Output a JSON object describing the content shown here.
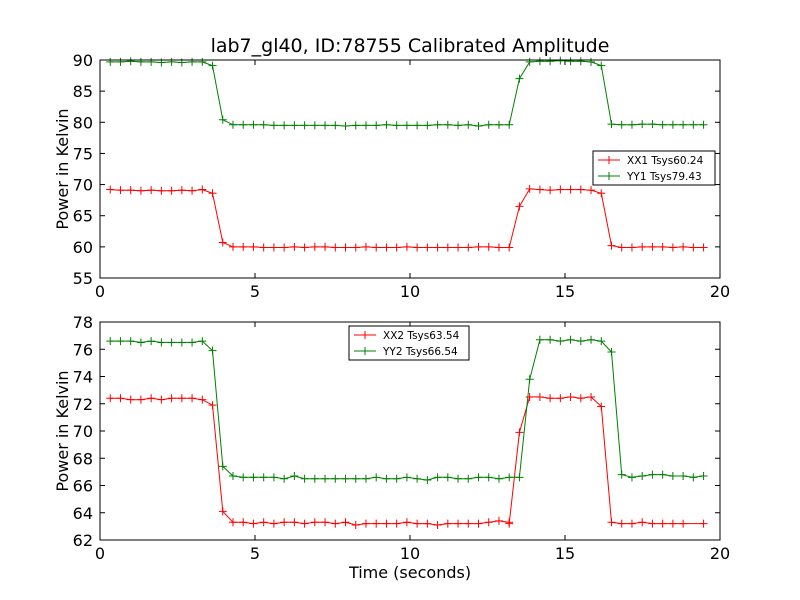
{
  "figure": {
    "title": "lab7_gl40, ID:78755 Calibrated Amplitude",
    "xlabel": "Time (seconds)"
  },
  "chart_data": [
    {
      "type": "line",
      "title": "lab7_gl40, ID:78755 Calibrated Amplitude",
      "xlabel": "",
      "ylabel": "Power in Kelvin",
      "xlim": [
        0,
        20
      ],
      "ylim": [
        55,
        90
      ],
      "xticks": [
        0,
        5,
        10,
        15,
        20
      ],
      "yticks": [
        55,
        60,
        65,
        70,
        75,
        80,
        85,
        90
      ],
      "grid": false,
      "legend_position": "center-right",
      "x": [
        0.33,
        0.66,
        0.99,
        1.32,
        1.65,
        1.98,
        2.31,
        2.64,
        2.97,
        3.3,
        3.63,
        3.96,
        4.29,
        4.62,
        4.95,
        5.28,
        5.61,
        5.94,
        6.27,
        6.6,
        6.93,
        7.26,
        7.59,
        7.92,
        8.25,
        8.58,
        8.91,
        9.24,
        9.57,
        9.9,
        10.23,
        10.56,
        10.89,
        11.22,
        11.55,
        11.88,
        12.21,
        12.54,
        12.87,
        13.2,
        13.53,
        13.86,
        14.19,
        14.52,
        14.85,
        15.18,
        15.51,
        15.84,
        16.17,
        16.5,
        16.83,
        17.16,
        17.49,
        17.82,
        18.15,
        18.48,
        18.81,
        19.14,
        19.47
      ],
      "series": [
        {
          "name": "XX1 Tsys60.24",
          "color": "#ff0000",
          "values": [
            69.2,
            69.1,
            69.1,
            69.0,
            69.1,
            69.0,
            69.0,
            69.1,
            69.0,
            69.2,
            68.6,
            60.7,
            60.0,
            60.0,
            60.0,
            59.9,
            59.9,
            59.9,
            60.0,
            59.9,
            60.0,
            60.0,
            59.9,
            59.9,
            59.9,
            60.0,
            59.9,
            59.9,
            59.9,
            60.0,
            59.9,
            59.9,
            59.9,
            59.9,
            59.9,
            59.9,
            60.0,
            60.0,
            59.9,
            59.9,
            66.5,
            69.3,
            69.2,
            69.1,
            69.2,
            69.2,
            69.2,
            69.1,
            68.6,
            60.2,
            59.9,
            59.9,
            60.0,
            60.0,
            60.0,
            59.9,
            60.0,
            59.9,
            59.9
          ]
        },
        {
          "name": "YY1 Tsys79.43",
          "color": "#008000",
          "values": [
            89.7,
            89.7,
            89.8,
            89.7,
            89.7,
            89.6,
            89.7,
            89.6,
            89.7,
            89.7,
            89.1,
            80.4,
            79.6,
            79.6,
            79.6,
            79.6,
            79.5,
            79.5,
            79.5,
            79.5,
            79.5,
            79.5,
            79.5,
            79.4,
            79.5,
            79.5,
            79.5,
            79.6,
            79.5,
            79.5,
            79.5,
            79.5,
            79.6,
            79.6,
            79.5,
            79.6,
            79.4,
            79.6,
            79.6,
            79.6,
            87.0,
            89.7,
            89.8,
            89.8,
            89.9,
            89.8,
            89.8,
            89.7,
            89.1,
            79.7,
            79.6,
            79.6,
            79.7,
            79.7,
            79.6,
            79.6,
            79.6,
            79.6,
            79.6
          ]
        }
      ]
    },
    {
      "type": "line",
      "title": "",
      "xlabel": "Time (seconds)",
      "ylabel": "Power in Kelvin",
      "xlim": [
        0,
        20
      ],
      "ylim": [
        62,
        78
      ],
      "xticks": [
        0,
        5,
        10,
        15,
        20
      ],
      "yticks": [
        62,
        64,
        66,
        68,
        70,
        72,
        74,
        76,
        78
      ],
      "grid": false,
      "legend_position": "top-center",
      "x": [
        0.33,
        0.66,
        0.99,
        1.32,
        1.65,
        1.98,
        2.31,
        2.64,
        2.97,
        3.3,
        3.63,
        3.96,
        4.29,
        4.62,
        4.95,
        5.28,
        5.61,
        5.94,
        6.27,
        6.6,
        6.93,
        7.26,
        7.59,
        7.92,
        8.25,
        8.58,
        8.91,
        9.24,
        9.57,
        9.9,
        10.23,
        10.56,
        10.89,
        11.22,
        11.55,
        11.88,
        12.21,
        12.54,
        12.87,
        13.2,
        13.53,
        13.86,
        14.19,
        14.52,
        14.85,
        15.18,
        15.51,
        15.84,
        16.17,
        16.5,
        16.83,
        17.16,
        17.49,
        17.82,
        18.15,
        18.48,
        18.81,
        19.14,
        19.47
      ],
      "series": [
        {
          "name": "XX2 Tsys63.54",
          "color": "#ff0000",
          "values": [
            72.4,
            72.4,
            72.3,
            72.3,
            72.4,
            72.3,
            72.4,
            72.4,
            72.4,
            72.3,
            71.9,
            64.1,
            63.3,
            63.3,
            63.2,
            63.3,
            63.2,
            63.3,
            63.3,
            63.2,
            63.3,
            63.3,
            63.2,
            63.3,
            63.1,
            63.2,
            63.2,
            63.2,
            63.2,
            63.3,
            63.2,
            63.2,
            63.1,
            63.2,
            63.2,
            63.2,
            63.2,
            63.3,
            63.4,
            63.3,
            63.2,
            69.9,
            72.5,
            72.5,
            72.4,
            72.4,
            72.5,
            72.4,
            72.5,
            71.8,
            63.3,
            63.2,
            63.2,
            63.3,
            63.2,
            63.2,
            63.2,
            63.2,
            63.2
          ],
          "x_override": [
            0.33,
            0.66,
            0.99,
            1.32,
            1.65,
            1.98,
            2.31,
            2.64,
            2.97,
            3.3,
            3.63,
            3.96,
            4.29,
            4.62,
            4.95,
            5.28,
            5.61,
            5.94,
            6.27,
            6.6,
            6.93,
            7.26,
            7.59,
            7.92,
            8.25,
            8.58,
            8.91,
            9.24,
            9.57,
            9.9,
            10.23,
            10.56,
            10.89,
            11.22,
            11.55,
            11.88,
            12.21,
            12.54,
            12.87,
            13.2,
            13.2,
            13.53,
            13.86,
            14.19,
            14.52,
            14.85,
            15.18,
            15.51,
            15.84,
            16.17,
            16.5,
            16.83,
            17.16,
            17.49,
            17.82,
            18.15,
            18.48,
            18.81,
            19.47
          ]
        },
        {
          "name": "YY2 Tsys66.54",
          "color": "#008000",
          "values": [
            76.6,
            76.6,
            76.6,
            76.5,
            76.6,
            76.5,
            76.5,
            76.5,
            76.5,
            76.6,
            75.9,
            67.4,
            66.7,
            66.6,
            66.6,
            66.6,
            66.6,
            66.5,
            66.7,
            66.5,
            66.5,
            66.5,
            66.5,
            66.5,
            66.5,
            66.5,
            66.6,
            66.5,
            66.5,
            66.6,
            66.5,
            66.4,
            66.6,
            66.6,
            66.5,
            66.5,
            66.6,
            66.6,
            66.5,
            66.6,
            66.6,
            73.8,
            76.7,
            76.7,
            76.6,
            76.7,
            76.6,
            76.7,
            76.6,
            75.8,
            66.8,
            66.6,
            66.7,
            66.8,
            66.8,
            66.7,
            66.7,
            66.6,
            66.7
          ]
        }
      ]
    }
  ]
}
